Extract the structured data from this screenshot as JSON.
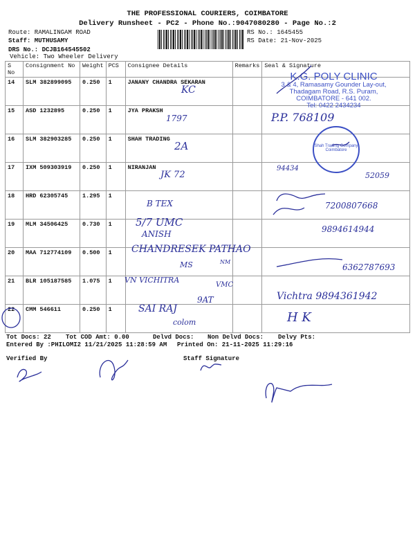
{
  "header": {
    "company": "THE PROFESSIONAL COURIERS, COIMBATORE",
    "subtitle": "Delivery Runsheet - PC2 - Phone No.:9047080280 - Page No.:2",
    "route": "Route: RAMALINGAM ROAD",
    "staff": "Staff: MUTHUSAMY",
    "drs": "DRS No.: DCJB164545502",
    "vehicle": "Vehicle: Two Wheeler Delivery",
    "rs_no": "RS No.: 1645455",
    "rs_date": "RS Date: 21-Nov-2025"
  },
  "table": {
    "columns": [
      "S No",
      "Consignment No",
      "Weight",
      "PCS",
      "Consignee Details",
      "Remarks",
      "Seal & Signature"
    ],
    "rows": [
      {
        "sno": "14",
        "consignment": "SLM 382899095",
        "weight": "0.250",
        "pcs": "1",
        "consignee": "JANANY CHANDRA SEKARAN"
      },
      {
        "sno": "15",
        "consignment": "ASD 1232895",
        "weight": "0.250",
        "pcs": "1",
        "consignee": "JYA PRAKSH"
      },
      {
        "sno": "16",
        "consignment": "SLM 382903285",
        "weight": "0.250",
        "pcs": "1",
        "consignee": "SHAH TRADING"
      },
      {
        "sno": "17",
        "consignment": "IXM 509303919",
        "weight": "0.250",
        "pcs": "1",
        "consignee": "NIRANJAN"
      },
      {
        "sno": "18",
        "consignment": "HRD 62305745",
        "weight": "1.295",
        "pcs": "1",
        "consignee": ""
      },
      {
        "sno": "19",
        "consignment": "MLM 34506425",
        "weight": "0.730",
        "pcs": "1",
        "consignee": ""
      },
      {
        "sno": "20",
        "consignment": "MAA 712774109",
        "weight": "0.500",
        "pcs": "1",
        "consignee": ""
      },
      {
        "sno": "21",
        "consignment": "BLR 105187585",
        "weight": "1.075",
        "pcs": "1",
        "consignee": ""
      },
      {
        "sno": "22",
        "consignment": "CMM 546611",
        "weight": "0.250",
        "pcs": "1",
        "consignee": ""
      }
    ]
  },
  "stamp": {
    "name": "K.G. POLY CLINIC",
    "line1": "3 & 4, Ramasamy Gounder Lay-out,",
    "line2": "Thadagam Road, R.S. Puram,",
    "line3": "COIMBATORE - 641 002.",
    "line4": "Tel: 0422 2434234",
    "seal": "Shah Trading Company Coimbatore"
  },
  "handwriting": {
    "r14": "KC",
    "r15": "1797",
    "r16": "2A",
    "r17": "JK  72",
    "r18": "B TEX",
    "r19a": "5/7 UMC",
    "r19b": "ANISH",
    "r20a": "CHANDRESEK PATHAO",
    "r20b": "NM",
    "r20c": "MS",
    "r21a": "VN VICHITRA",
    "r21b": "VMC",
    "r22a": "SAI RAJ",
    "r22b": "9AT",
    "r22c": "colom",
    "s15": "P.P.  768109",
    "s17a": "94434",
    "s17b": "52059",
    "s18": "7200807668",
    "s19": "9894614944",
    "s20": "6362787693",
    "s21": "Vichtra 9894361942",
    "s22": "H K"
  },
  "footer": {
    "tot_docs": "Tot Docs:  22",
    "tot_cod": "Tot COD Amt:    0.00",
    "delvd": "Delvd Docs:",
    "non_delvd": "Non Delvd Docs:",
    "delvy_pts": "Delvy Pts:",
    "entered": "Entered By :PHILOMI2 11/21/2025 11:28:59 AM",
    "printed": "Printed On: 21-11-2025 11:29:16",
    "verified": "Verified By",
    "staff_sig": "Staff Signature"
  }
}
